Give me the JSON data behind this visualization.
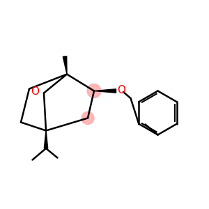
{
  "bg_color": "#ffffff",
  "line_color": "#000000",
  "oxygen_color": "#ff0000",
  "bond_width": 1.8,
  "ring_highlight_color": "#ffaaaa",
  "figsize": [
    3.0,
    3.0
  ],
  "dpi": 100
}
